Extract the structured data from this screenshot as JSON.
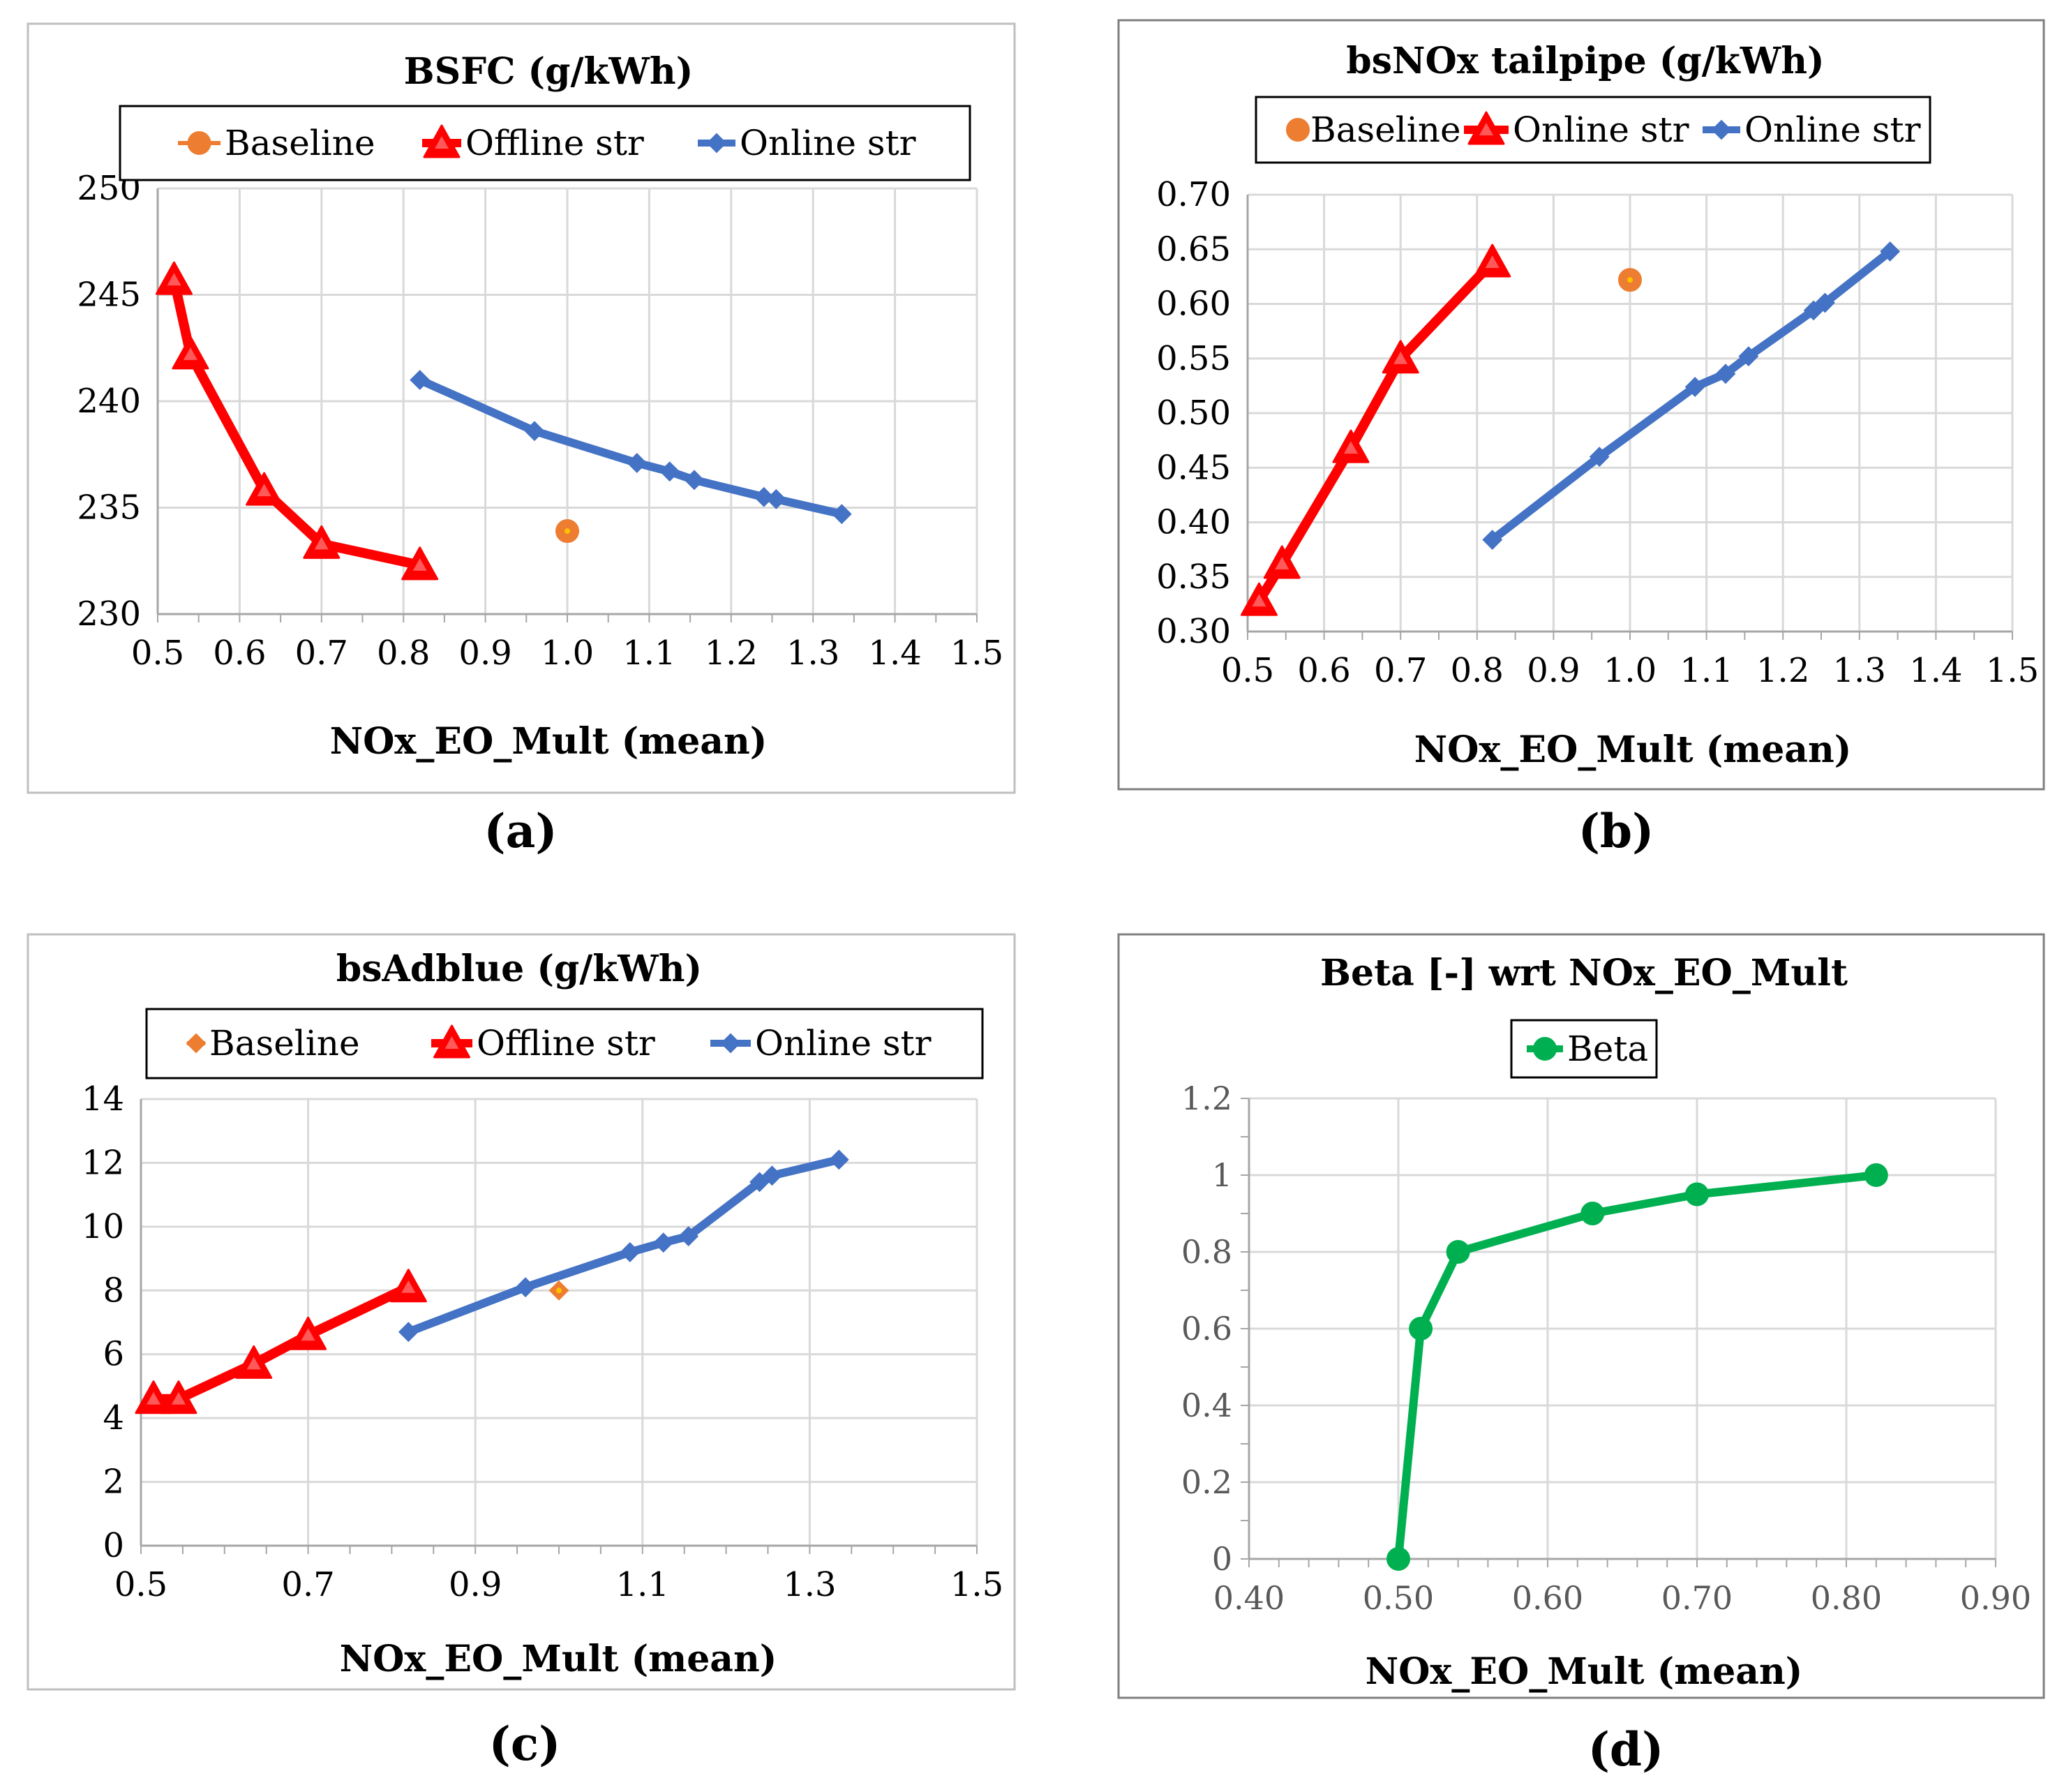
{
  "panel_labels": [
    "(a)",
    "(b)",
    "(c)",
    "(d)"
  ],
  "chart_data": [
    {
      "type": "line",
      "title": "BSFC (g/kWh)",
      "xlabel": "NOx_EO_Mult (mean)",
      "ylabel": "",
      "xlim": [
        0.5,
        1.5
      ],
      "ylim": [
        230,
        250
      ],
      "xticks": [
        "0.5",
        "0.6",
        "0.7",
        "0.8",
        "0.9",
        "1.0",
        "1.1",
        "1.2",
        "1.3",
        "1.4",
        "1.5"
      ],
      "yticks": [
        "230",
        "235",
        "240",
        "245",
        "250"
      ],
      "grid": true,
      "legend": "top",
      "series": [
        {
          "name": "Baseline",
          "color": "#ED7D31",
          "marker": "circle",
          "line": false,
          "x": [
            1.0
          ],
          "y": [
            233.9
          ]
        },
        {
          "name": "Offline str",
          "color": "#FF0000",
          "marker": "triangle",
          "line": true,
          "x": [
            0.52,
            0.54,
            0.63,
            0.7,
            0.82
          ],
          "y": [
            245.7,
            242.2,
            235.8,
            233.3,
            232.3
          ]
        },
        {
          "name": "Online str",
          "color": "#4472C4",
          "marker": "diamond",
          "line": true,
          "x": [
            0.82,
            0.96,
            1.085,
            1.125,
            1.155,
            1.24,
            1.255,
            1.335
          ],
          "y": [
            241.0,
            238.6,
            237.1,
            236.7,
            236.3,
            235.5,
            235.4,
            234.7
          ]
        }
      ]
    },
    {
      "type": "line",
      "title": "bsNOx tailpipe (g/kWh)",
      "xlabel": "NOx_EO_Mult (mean)",
      "ylabel": "",
      "xlim": [
        0.5,
        1.5
      ],
      "ylim": [
        0.3,
        0.7
      ],
      "xticks": [
        "0.5",
        "0.6",
        "0.7",
        "0.8",
        "0.9",
        "1.0",
        "1.1",
        "1.2",
        "1.3",
        "1.4",
        "1.5"
      ],
      "yticks": [
        "0.30",
        "0.35",
        "0.40",
        "0.45",
        "0.50",
        "0.55",
        "0.60",
        "0.65",
        "0.70"
      ],
      "grid": true,
      "legend": "top",
      "series": [
        {
          "name": "Baseline",
          "color": "#ED7D31",
          "marker": "circle",
          "line": false,
          "x": [
            1.0
          ],
          "y": [
            0.622
          ]
        },
        {
          "name": "Online str",
          "color": "#FF0000",
          "marker": "triangle",
          "line": true,
          "x": [
            0.515,
            0.545,
            0.635,
            0.7,
            0.82
          ],
          "y": [
            0.328,
            0.362,
            0.468,
            0.55,
            0.638
          ]
        },
        {
          "name": "Online str",
          "color": "#4472C4",
          "marker": "diamond",
          "line": true,
          "x": [
            0.82,
            0.96,
            1.085,
            1.125,
            1.155,
            1.24,
            1.255,
            1.34
          ],
          "y": [
            0.384,
            0.46,
            0.524,
            0.536,
            0.552,
            0.594,
            0.601,
            0.648
          ]
        }
      ]
    },
    {
      "type": "line",
      "title": "bsAdblue (g/kWh)",
      "xlabel": "NOx_EO_Mult (mean)",
      "ylabel": "",
      "xlim": [
        0.5,
        1.5
      ],
      "ylim": [
        0,
        14
      ],
      "xticks": [
        "0.5",
        "0.7",
        "0.9",
        "1.1",
        "1.3",
        "1.5"
      ],
      "yticks": [
        "0",
        "2",
        "4",
        "6",
        "8",
        "10",
        "12",
        "14"
      ],
      "grid": true,
      "legend": "top",
      "series": [
        {
          "name": "Baseline",
          "color": "#ED7D31",
          "marker": "diamond",
          "line": false,
          "x": [
            1.0
          ],
          "y": [
            8.0
          ]
        },
        {
          "name": "Offline str",
          "color": "#FF0000",
          "marker": "triangle",
          "line": true,
          "x": [
            0.515,
            0.545,
            0.635,
            0.7,
            0.82
          ],
          "y": [
            4.6,
            4.6,
            5.7,
            6.6,
            8.1
          ]
        },
        {
          "name": "Online str",
          "color": "#4472C4",
          "marker": "diamond",
          "line": true,
          "x": [
            0.82,
            0.96,
            1.085,
            1.125,
            1.155,
            1.24,
            1.255,
            1.335
          ],
          "y": [
            6.7,
            8.1,
            9.2,
            9.5,
            9.7,
            11.4,
            11.6,
            12.1
          ]
        }
      ]
    },
    {
      "type": "line",
      "title": "Beta [-] wrt NOx_EO_Mult",
      "xlabel": "NOx_EO_Mult (mean)",
      "ylabel": "",
      "xlim": [
        0.4,
        0.9
      ],
      "ylim": [
        0,
        1.2
      ],
      "xticks": [
        "0.40",
        "0.50",
        "0.60",
        "0.70",
        "0.80",
        "0.90"
      ],
      "yticks": [
        "0",
        "0.2",
        "0.4",
        "0.6",
        "0.8",
        "1",
        "1.2"
      ],
      "grid": true,
      "legend": "top",
      "series": [
        {
          "name": "Beta",
          "color": "#00B050",
          "marker": "circle",
          "line": true,
          "x": [
            0.5,
            0.515,
            0.54,
            0.63,
            0.7,
            0.82
          ],
          "y": [
            0.0,
            0.6,
            0.8,
            0.9,
            0.95,
            1.0
          ]
        }
      ]
    }
  ]
}
